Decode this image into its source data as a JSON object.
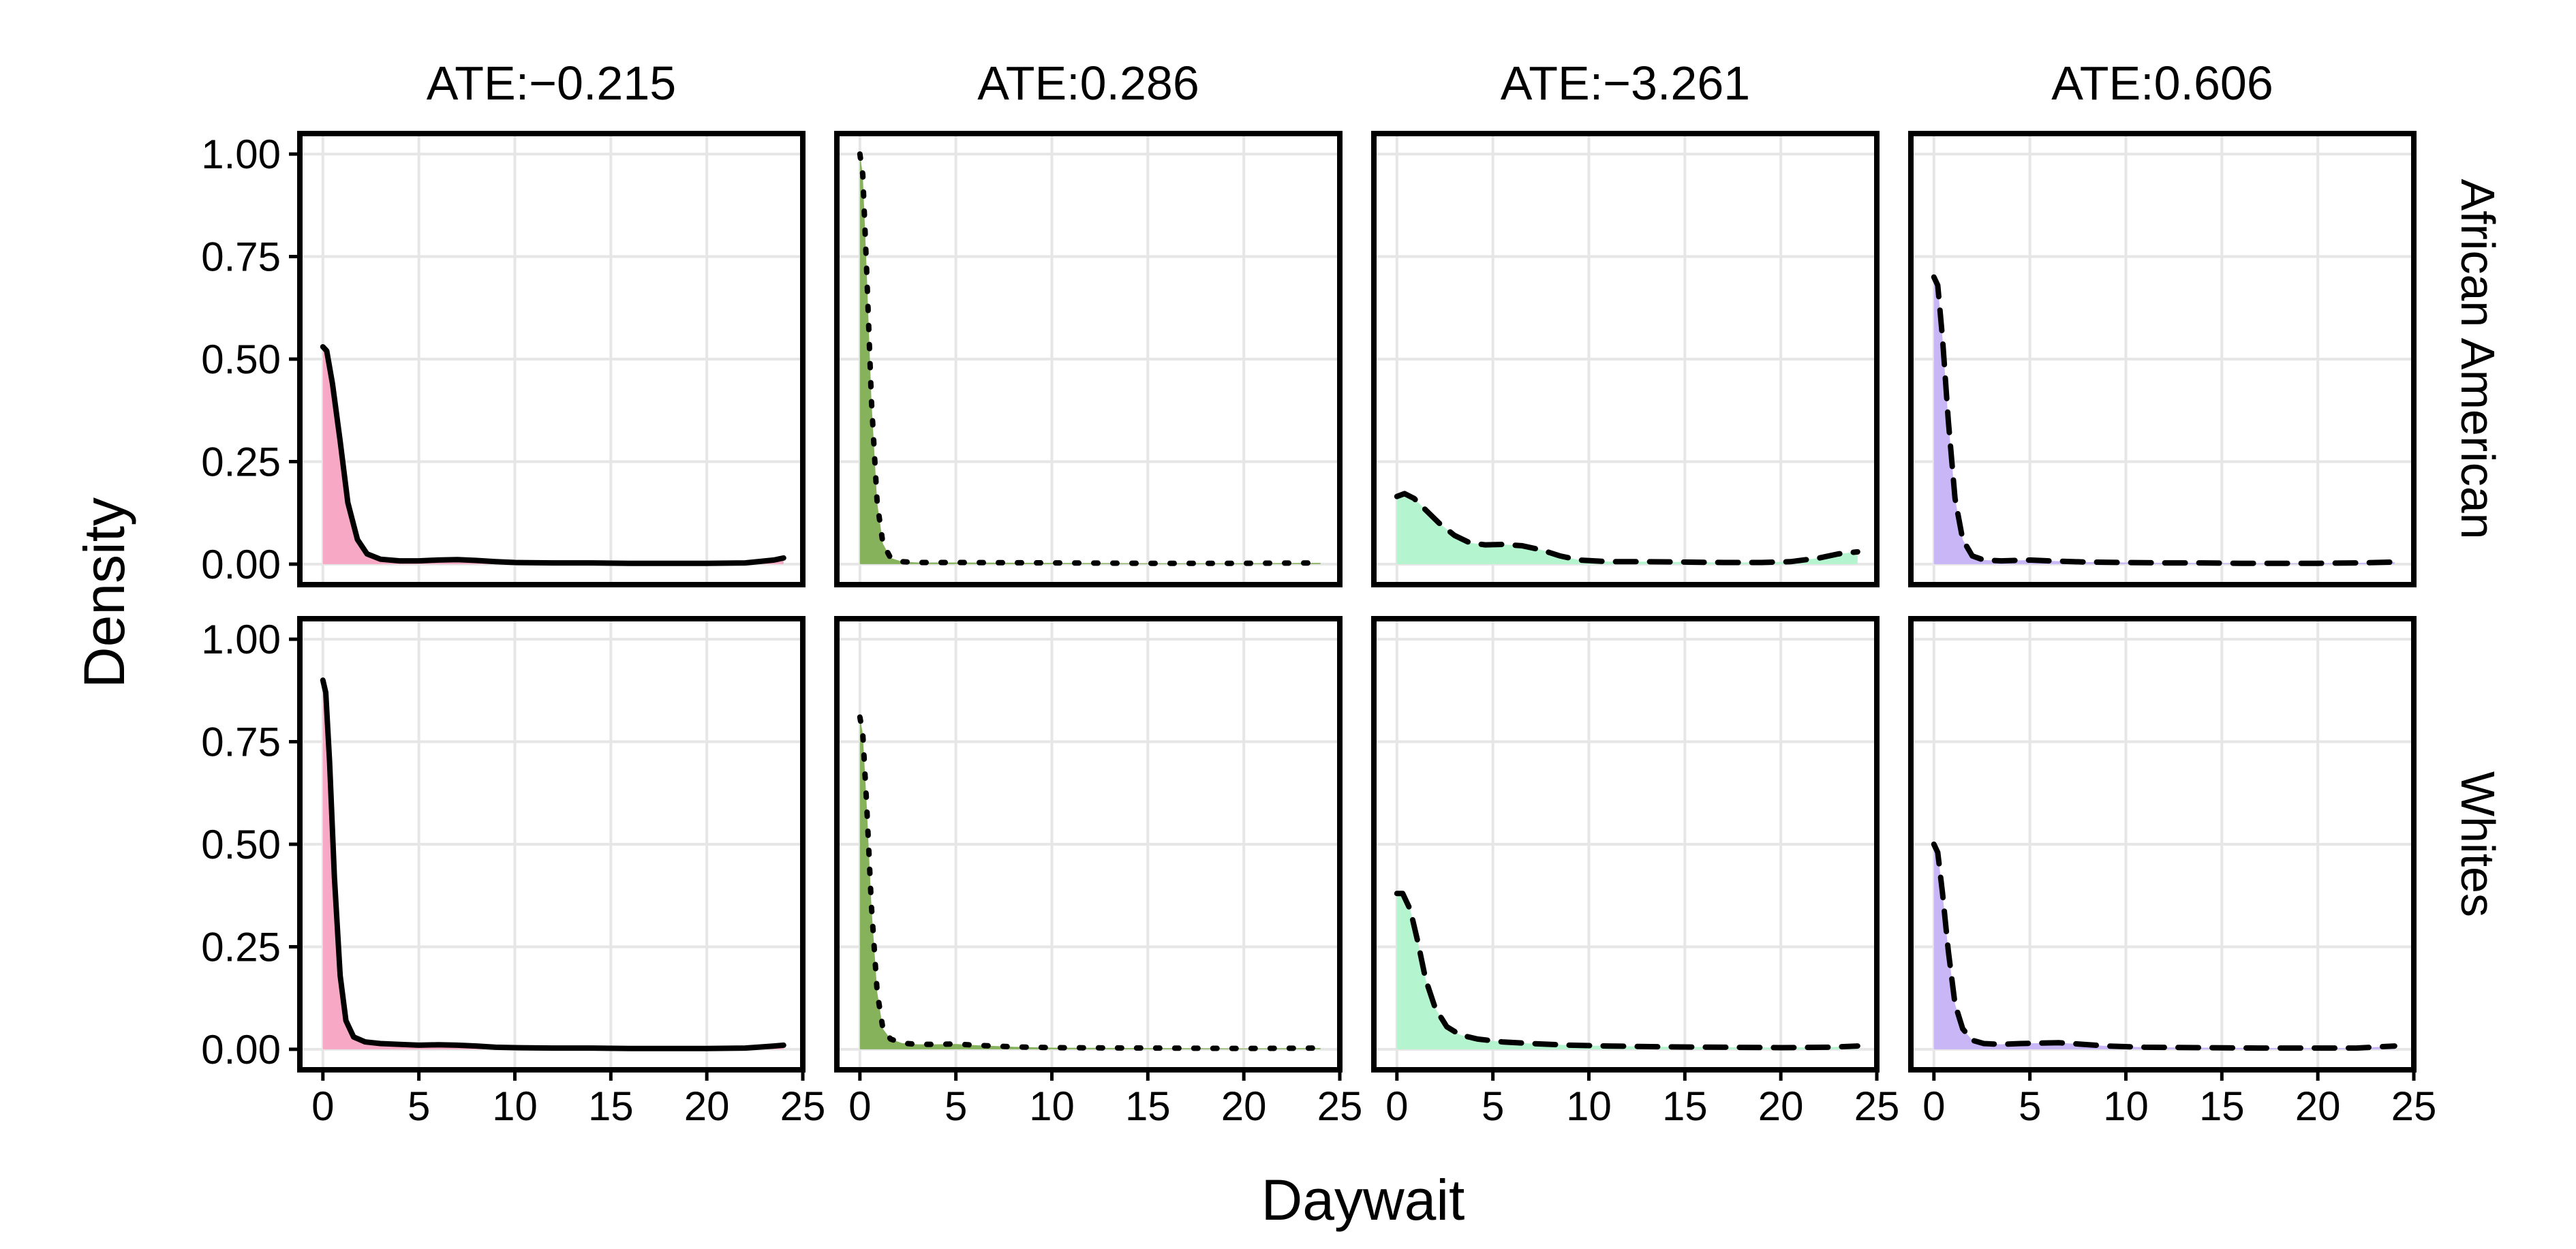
{
  "chart_data": {
    "type": "area",
    "title": "",
    "xlabel": "Daywait",
    "ylabel": "Density",
    "xlim": [
      -1.2,
      25
    ],
    "ylim": [
      -0.05,
      1.05
    ],
    "xticks": [
      0,
      5,
      10,
      15,
      20,
      25
    ],
    "xtick_labels": [
      "0",
      "5",
      "10",
      "15",
      "20",
      "25"
    ],
    "yticks": [
      0,
      0.25,
      0.5,
      0.75,
      1.0
    ],
    "ytick_labels": [
      "0.00",
      "0.25",
      "0.50",
      "0.75",
      "1.00"
    ],
    "grid": true,
    "columns": [
      {
        "label": "ATE:−0.215",
        "color": "#f7a8c4",
        "linestyle": "solid"
      },
      {
        "label": "ATE:0.286",
        "color": "#86b25c",
        "linestyle": "dotted"
      },
      {
        "label": "ATE:−3.261",
        "color": "#b4f5cf",
        "linestyle": "dashed"
      },
      {
        "label": "ATE:0.606",
        "color": "#c9b6f7",
        "linestyle": "dashed"
      }
    ],
    "rows": [
      {
        "label": "African American"
      },
      {
        "label": "Whites"
      }
    ],
    "panels": [
      {
        "row": 0,
        "col": 0,
        "x": [
          0,
          0.2,
          0.5,
          0.9,
          1.3,
          1.8,
          2.3,
          3,
          4,
          5,
          6,
          7,
          8,
          9,
          10,
          12,
          14,
          16,
          18,
          20,
          22,
          23.5,
          24
        ],
        "y": [
          0.53,
          0.52,
          0.44,
          0.3,
          0.15,
          0.06,
          0.025,
          0.012,
          0.008,
          0.008,
          0.01,
          0.011,
          0.009,
          0.006,
          0.004,
          0.003,
          0.003,
          0.002,
          0.002,
          0.002,
          0.003,
          0.01,
          0.015
        ]
      },
      {
        "row": 0,
        "col": 1,
        "x": [
          0,
          0.15,
          0.35,
          0.6,
          0.9,
          1.2,
          1.6,
          2.2,
          3,
          5,
          10,
          15,
          20,
          24
        ],
        "y": [
          1.0,
          0.95,
          0.72,
          0.4,
          0.15,
          0.05,
          0.015,
          0.006,
          0.004,
          0.004,
          0.003,
          0.002,
          0.002,
          0.003
        ]
      },
      {
        "row": 0,
        "col": 2,
        "x": [
          0,
          0.4,
          0.9,
          1.5,
          2.2,
          3,
          3.8,
          4.6,
          5.5,
          6.5,
          7.5,
          8.5,
          9.5,
          11,
          13,
          15,
          17,
          19,
          20.5,
          22,
          23,
          24
        ],
        "y": [
          0.165,
          0.172,
          0.16,
          0.132,
          0.1,
          0.07,
          0.052,
          0.047,
          0.048,
          0.045,
          0.035,
          0.02,
          0.01,
          0.006,
          0.006,
          0.005,
          0.004,
          0.004,
          0.006,
          0.015,
          0.025,
          0.03
        ]
      },
      {
        "row": 0,
        "col": 3,
        "x": [
          0,
          0.2,
          0.45,
          0.75,
          1.1,
          1.5,
          2,
          2.6,
          3.5,
          5,
          6,
          8,
          10,
          12,
          14,
          16,
          18,
          20,
          22,
          24
        ],
        "y": [
          0.7,
          0.68,
          0.55,
          0.35,
          0.16,
          0.06,
          0.02,
          0.01,
          0.008,
          0.01,
          0.008,
          0.005,
          0.004,
          0.003,
          0.003,
          0.002,
          0.002,
          0.002,
          0.003,
          0.005
        ]
      },
      {
        "row": 1,
        "col": 0,
        "x": [
          0,
          0.15,
          0.35,
          0.6,
          0.9,
          1.2,
          1.6,
          2.2,
          3,
          4,
          5,
          6,
          7,
          8,
          9,
          10,
          12,
          14,
          16,
          18,
          20,
          22,
          23.5,
          24
        ],
        "y": [
          0.9,
          0.87,
          0.7,
          0.42,
          0.18,
          0.07,
          0.03,
          0.018,
          0.014,
          0.012,
          0.01,
          0.011,
          0.01,
          0.008,
          0.005,
          0.004,
          0.003,
          0.003,
          0.002,
          0.002,
          0.002,
          0.003,
          0.008,
          0.01
        ]
      },
      {
        "row": 1,
        "col": 1,
        "x": [
          0,
          0.15,
          0.35,
          0.6,
          0.9,
          1.2,
          1.6,
          2.2,
          3,
          4,
          5,
          6,
          8,
          10,
          15,
          20,
          24
        ],
        "y": [
          0.81,
          0.77,
          0.6,
          0.35,
          0.14,
          0.05,
          0.025,
          0.015,
          0.012,
          0.012,
          0.013,
          0.01,
          0.006,
          0.004,
          0.003,
          0.002,
          0.003
        ]
      },
      {
        "row": 1,
        "col": 2,
        "x": [
          0,
          0.3,
          0.7,
          1.1,
          1.5,
          2,
          2.6,
          3.3,
          4.2,
          5.5,
          7,
          9,
          11,
          14,
          17,
          20,
          22.5,
          24
        ],
        "y": [
          0.38,
          0.38,
          0.34,
          0.26,
          0.17,
          0.1,
          0.055,
          0.035,
          0.025,
          0.018,
          0.014,
          0.01,
          0.008,
          0.006,
          0.005,
          0.004,
          0.005,
          0.008
        ]
      },
      {
        "row": 1,
        "col": 3,
        "x": [
          0,
          0.2,
          0.45,
          0.75,
          1.1,
          1.5,
          2,
          2.6,
          3.5,
          4.5,
          5.5,
          6.5,
          7.5,
          9,
          11,
          14,
          17,
          20,
          22,
          24
        ],
        "y": [
          0.5,
          0.48,
          0.38,
          0.24,
          0.11,
          0.05,
          0.022,
          0.014,
          0.012,
          0.014,
          0.015,
          0.016,
          0.013,
          0.008,
          0.005,
          0.004,
          0.003,
          0.003,
          0.003,
          0.008
        ]
      }
    ]
  }
}
